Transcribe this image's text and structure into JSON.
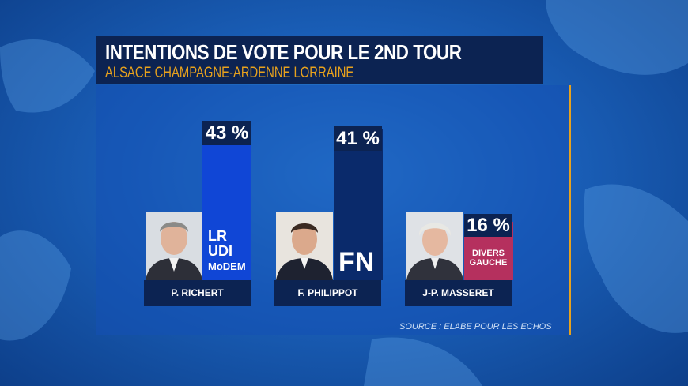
{
  "header": {
    "title": "INTENTIONS DE VOTE POUR LE 2ND TOUR",
    "subtitle": "ALSACE CHAMPAGNE-ARDENNE LORRAINE"
  },
  "source": "SOURCE : ELABE POUR LES ECHOS",
  "colors": {
    "lr_udi_modem": "#1046d6",
    "fn": "#0a2a6b",
    "divers_gauche": "#b5305e",
    "label_bg": "#0c2352",
    "subtitle": "#e8a21d"
  },
  "chart_data": {
    "type": "bar",
    "title": "INTENTIONS DE VOTE POUR LE 2ND TOUR",
    "subtitle": "ALSACE CHAMPAGNE-ARDENNE LORRAINE",
    "categories": [
      "P. RICHERT",
      "F. PHILIPPOT",
      "J-P. MASSERET"
    ],
    "values": [
      43,
      41,
      16
    ],
    "value_labels": [
      "43 %",
      "41 %",
      "16 %"
    ],
    "parties": [
      [
        "LR",
        "UDI",
        "MoDEM"
      ],
      [
        "FN"
      ],
      [
        "DIVERS",
        "GAUCHE"
      ]
    ],
    "unit": "%",
    "ylim": [
      0,
      43
    ]
  }
}
